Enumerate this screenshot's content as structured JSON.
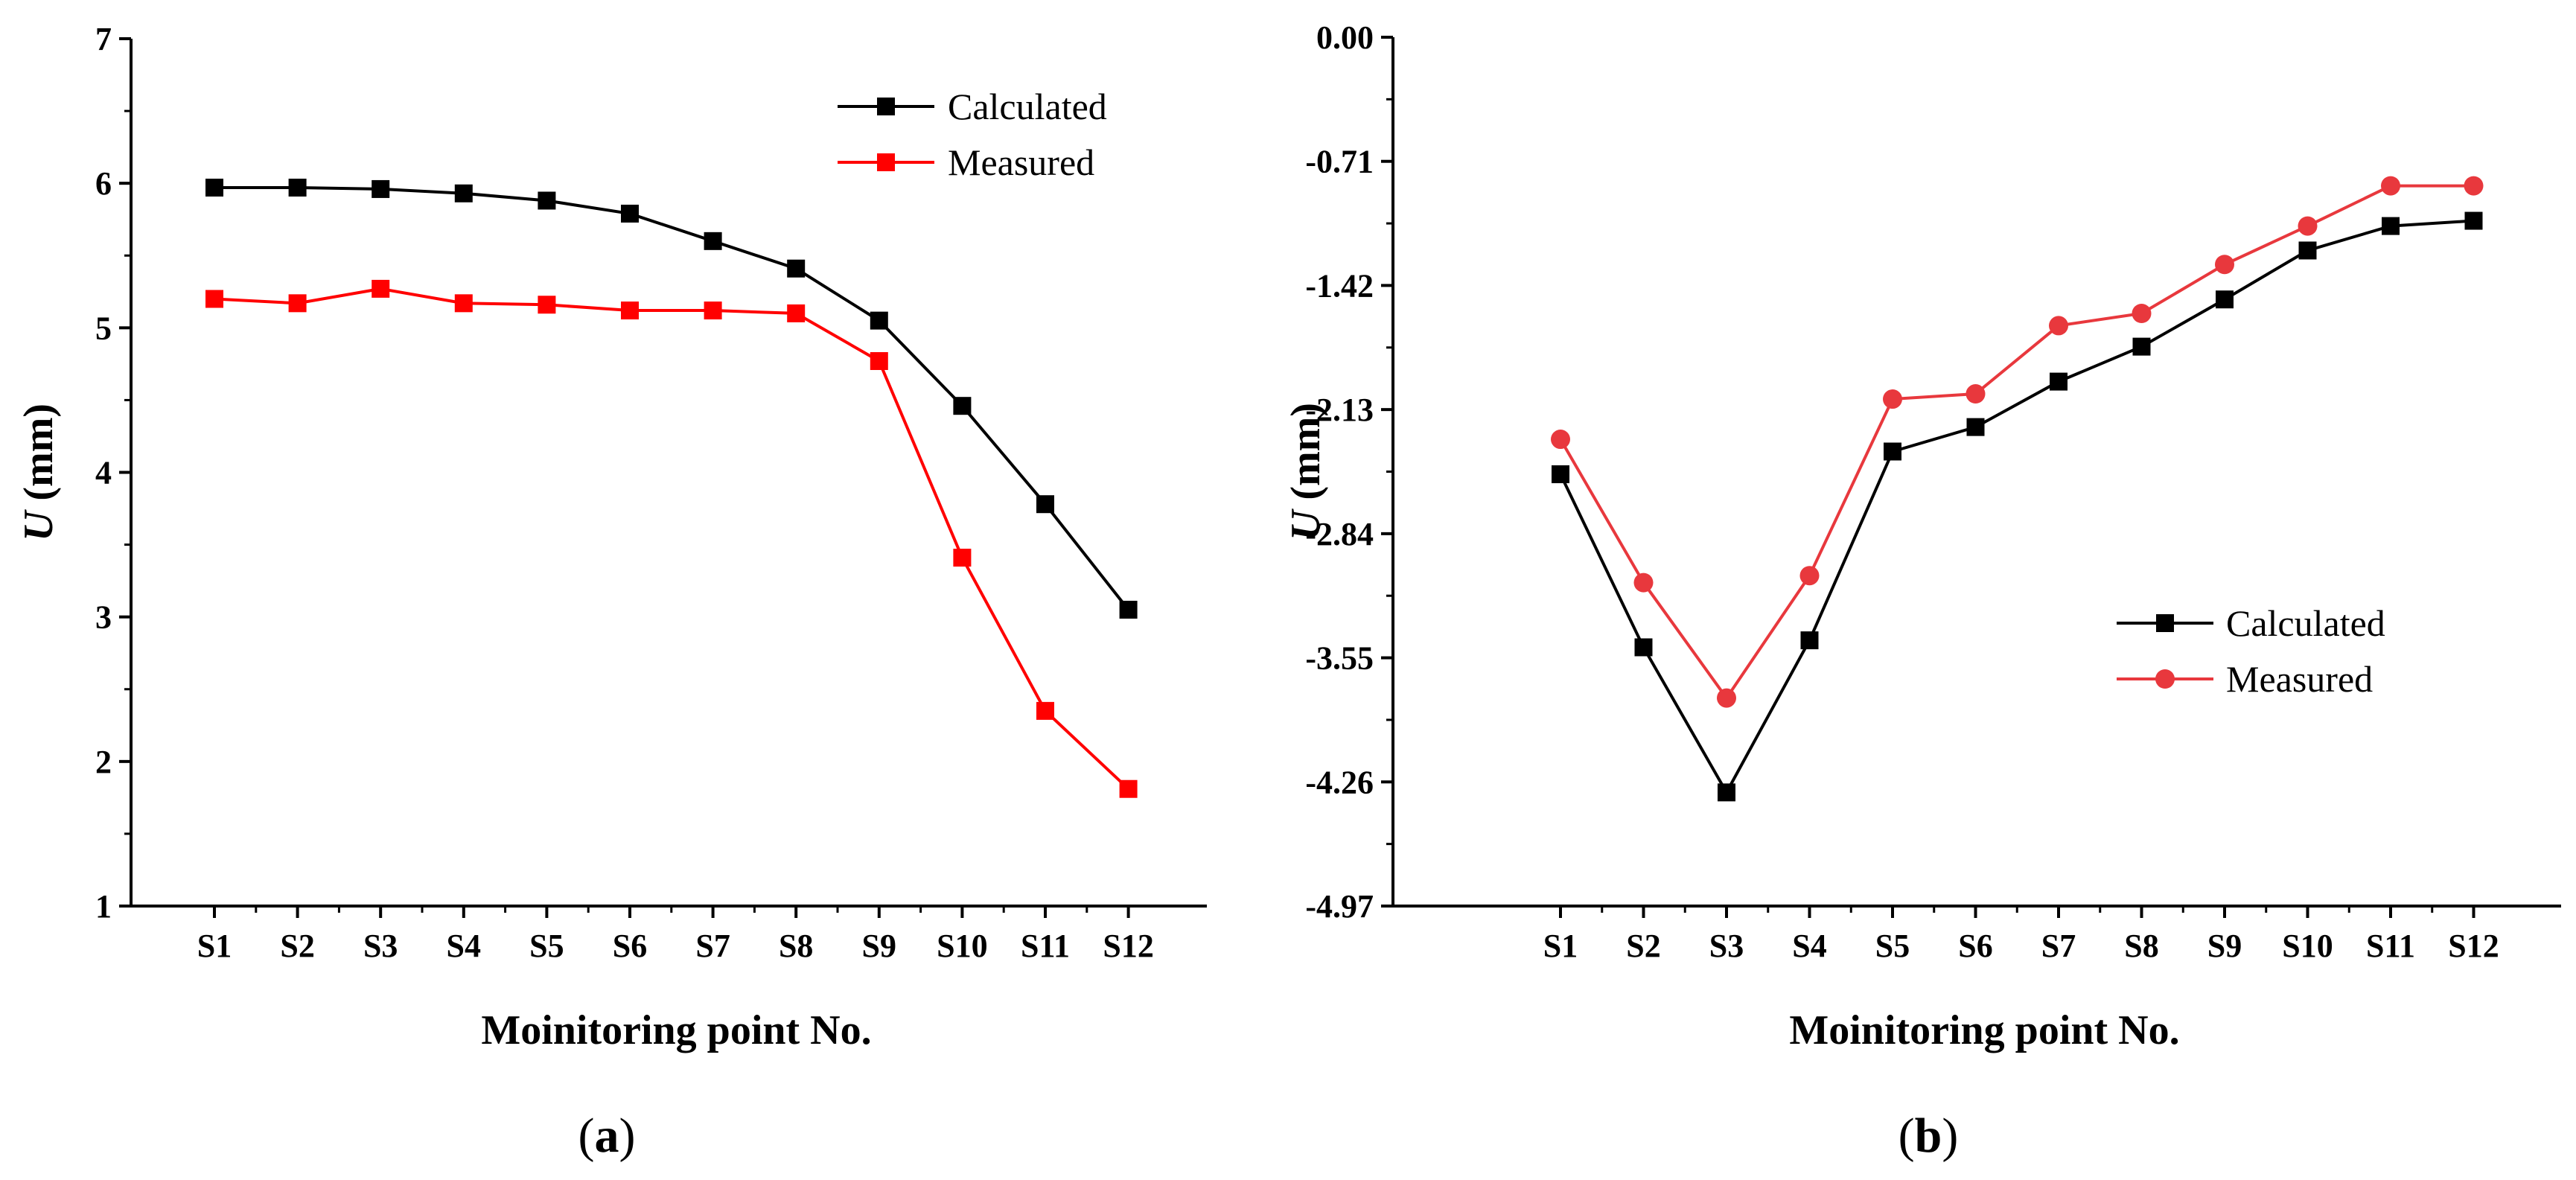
{
  "chart_data": [
    {
      "type": "line",
      "panel_label": "a",
      "xlabel": "Moinitoring point No.",
      "ylabel_var": "U",
      "ylabel_unit": " (mm)",
      "categories": [
        "S1",
        "S2",
        "S3",
        "S4",
        "S5",
        "S6",
        "S7",
        "S8",
        "S9",
        "S10",
        "S11",
        "S12"
      ],
      "ylim": [
        1,
        7
      ],
      "yticks": [
        "1",
        "2",
        "3",
        "4",
        "5",
        "6",
        "7"
      ],
      "legend_position": "top-right",
      "series": [
        {
          "name": "Calculated",
          "color": "#000000",
          "marker": "square",
          "values": [
            5.97,
            5.97,
            5.96,
            5.93,
            5.88,
            5.79,
            5.6,
            5.41,
            5.05,
            4.46,
            3.78,
            3.05
          ]
        },
        {
          "name": "Measured",
          "color": "#ff0000",
          "marker": "square",
          "values": [
            5.2,
            5.17,
            5.27,
            5.17,
            5.16,
            5.12,
            5.12,
            5.1,
            4.77,
            3.41,
            2.35,
            1.81
          ]
        }
      ]
    },
    {
      "type": "line",
      "panel_label": "b",
      "xlabel": "Moinitoring point No.",
      "ylabel_var": "U",
      "ylabel_unit": " (mm)",
      "categories": [
        "S1",
        "S2",
        "S3",
        "S4",
        "S5",
        "S6",
        "S7",
        "S8",
        "S9",
        "S10",
        "S11",
        "S12"
      ],
      "ylim": [
        -4.97,
        0.0
      ],
      "yticks": [
        "0.00",
        "-0.71",
        "-1.42",
        "-2.13",
        "-2.84",
        "-3.55",
        "-4.26",
        "-4.97"
      ],
      "legend_position": "center-right",
      "series": [
        {
          "name": "Calculated",
          "color": "#000000",
          "marker": "square",
          "values": [
            -2.5,
            -3.49,
            -4.32,
            -3.45,
            -2.37,
            -2.23,
            -1.97,
            -1.77,
            -1.5,
            -1.22,
            -1.08,
            -1.05
          ]
        },
        {
          "name": "Measured",
          "color": "#e8383d",
          "marker": "circle",
          "values": [
            -2.3,
            -3.12,
            -3.78,
            -3.08,
            -2.07,
            -2.04,
            -1.65,
            -1.58,
            -1.3,
            -1.08,
            -0.85,
            -0.85
          ]
        }
      ]
    }
  ]
}
